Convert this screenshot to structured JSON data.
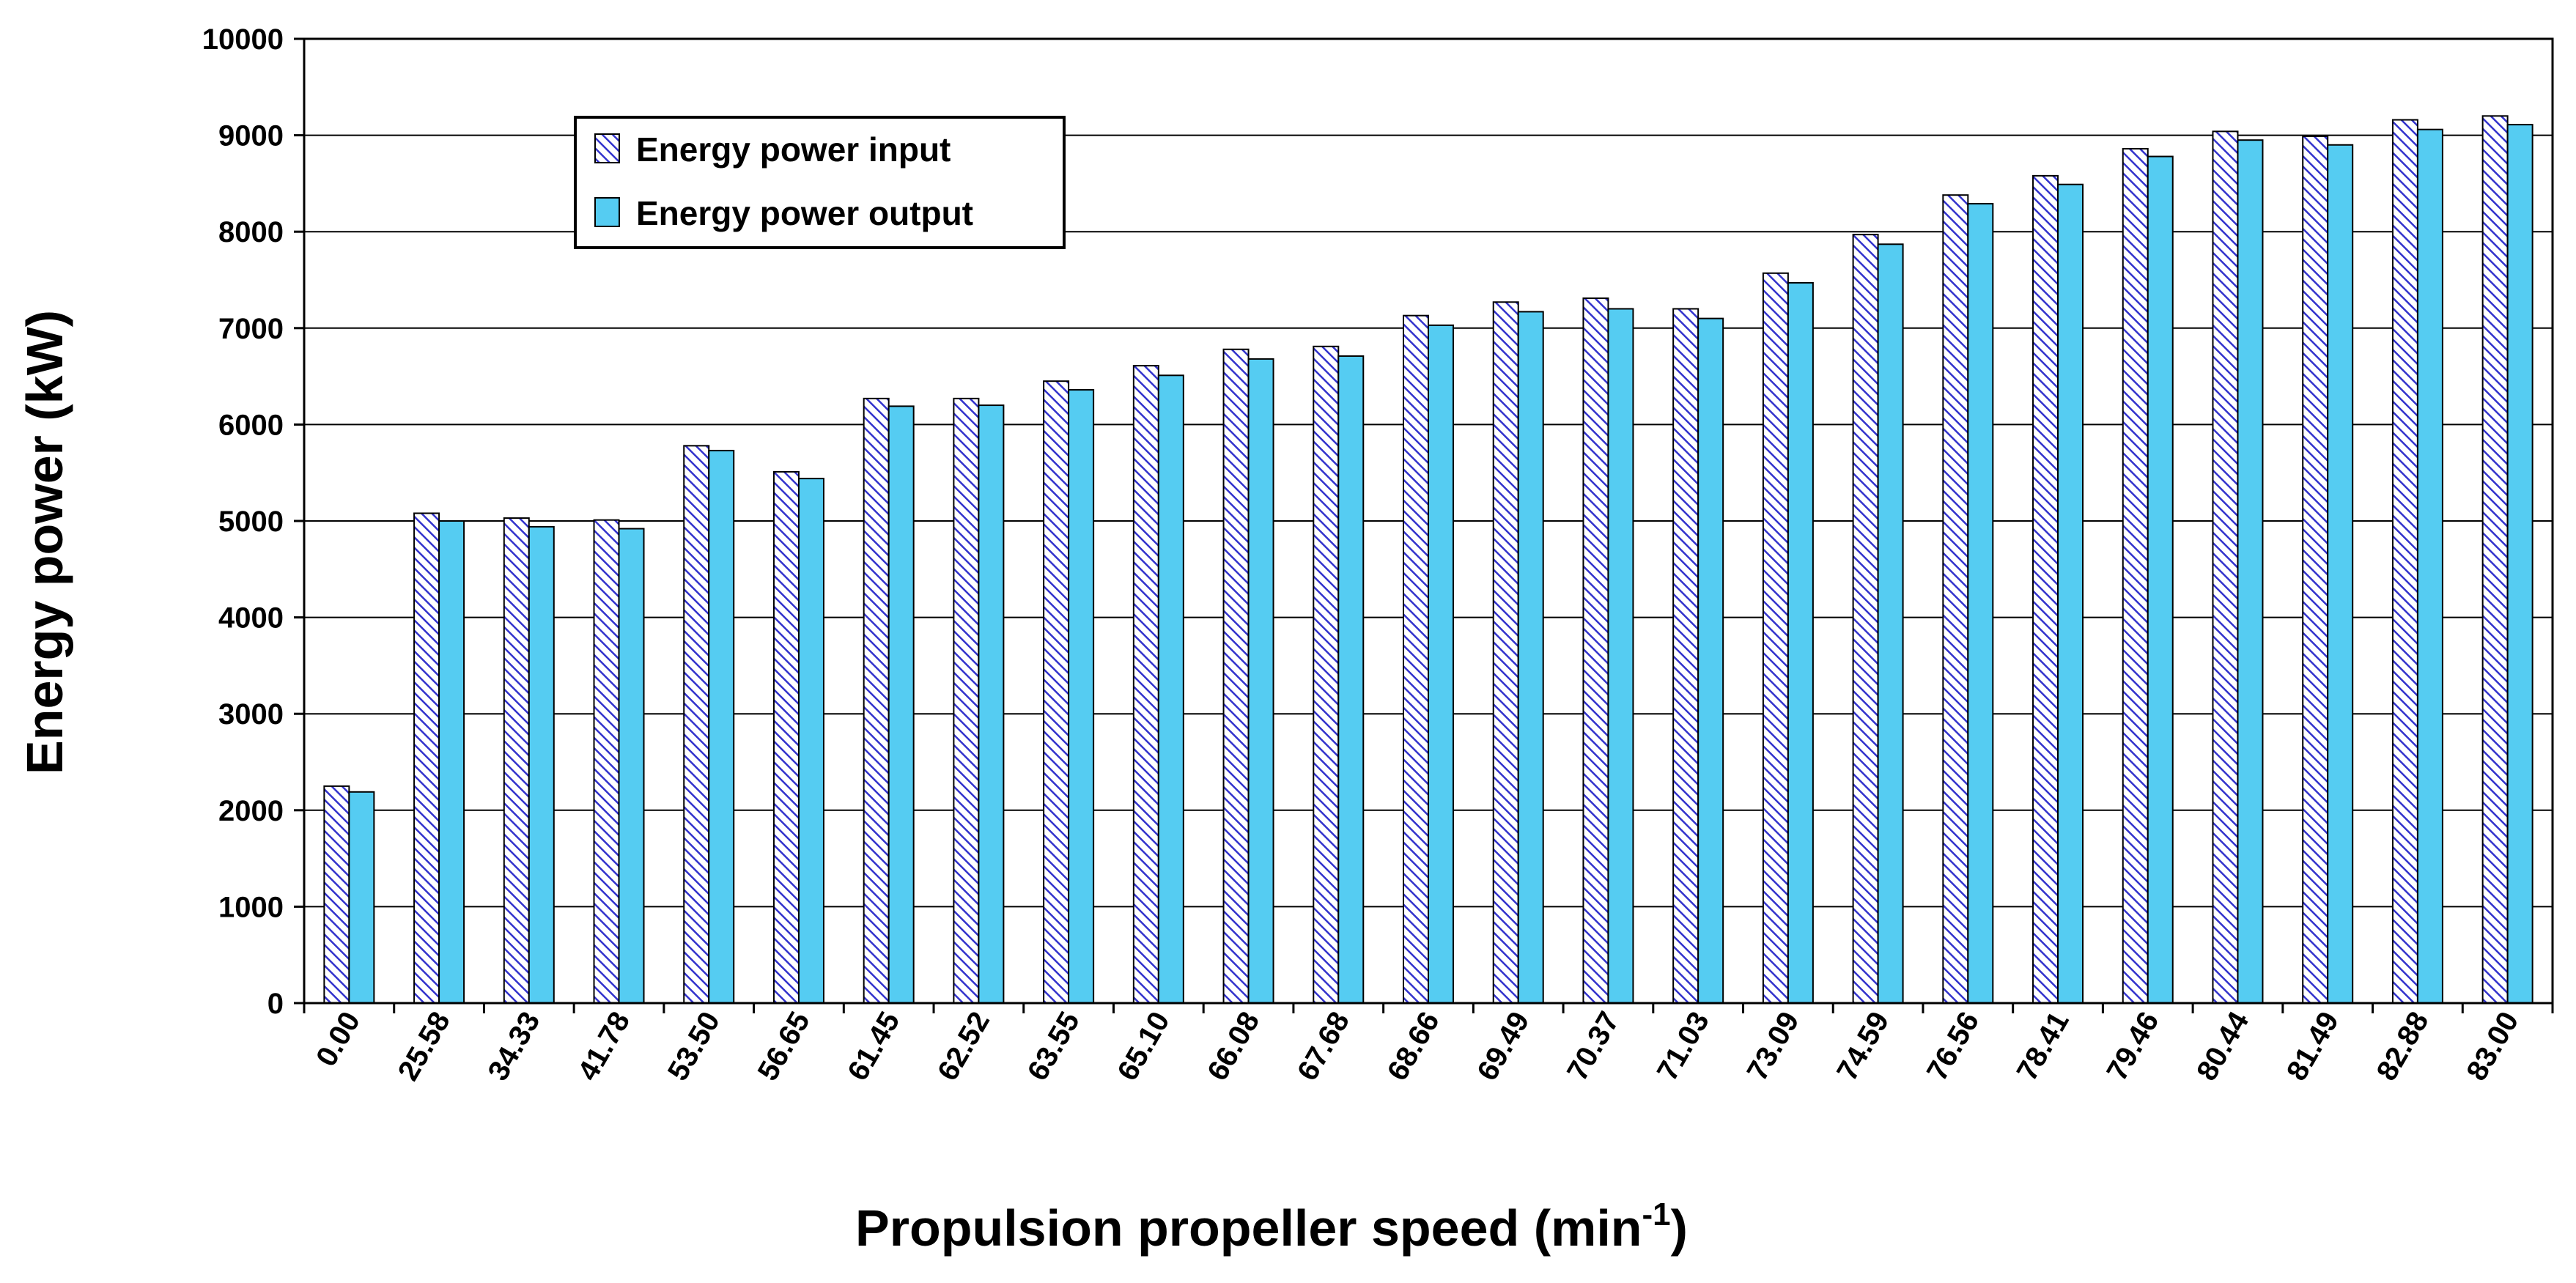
{
  "chart_data": {
    "type": "bar",
    "title": "",
    "xlabel": "Propulsion propeller speed",
    "xlabel_unit_base": "min",
    "xlabel_unit_sup": "-1",
    "ylabel": "Energy power (kW)",
    "ylim": [
      0,
      10000
    ],
    "yticks": [
      0,
      1000,
      2000,
      3000,
      4000,
      5000,
      6000,
      7000,
      8000,
      9000,
      10000
    ],
    "grid": true,
    "legend_position": "top-left",
    "categories": [
      "0.00",
      "25.58",
      "34.33",
      "41.78",
      "53.50",
      "56.65",
      "61.45",
      "62.52",
      "63.55",
      "65.10",
      "66.08",
      "67.68",
      "68.66",
      "69.49",
      "70.37",
      "71.03",
      "73.09",
      "74.59",
      "76.56",
      "78.41",
      "79.46",
      "80.44",
      "81.49",
      "82.88",
      "83.00"
    ],
    "series": [
      {
        "name": "Energy power input",
        "color": "#3333cc",
        "pattern": "diagonal-hatch",
        "values": [
          2250,
          5080,
          5030,
          5010,
          5780,
          5510,
          6270,
          6270,
          6450,
          6610,
          6780,
          6810,
          7130,
          7270,
          7310,
          7200,
          7570,
          7970,
          8380,
          8580,
          8860,
          9040,
          8990,
          9160,
          9200
        ]
      },
      {
        "name": "Energy power output",
        "color": "#55ccf2",
        "pattern": "solid",
        "values": [
          2190,
          5000,
          4940,
          4920,
          5730,
          5440,
          6190,
          6200,
          6360,
          6510,
          6680,
          6710,
          7030,
          7170,
          7200,
          7100,
          7470,
          7870,
          8290,
          8490,
          8780,
          8950,
          8900,
          9060,
          9110
        ]
      }
    ]
  }
}
